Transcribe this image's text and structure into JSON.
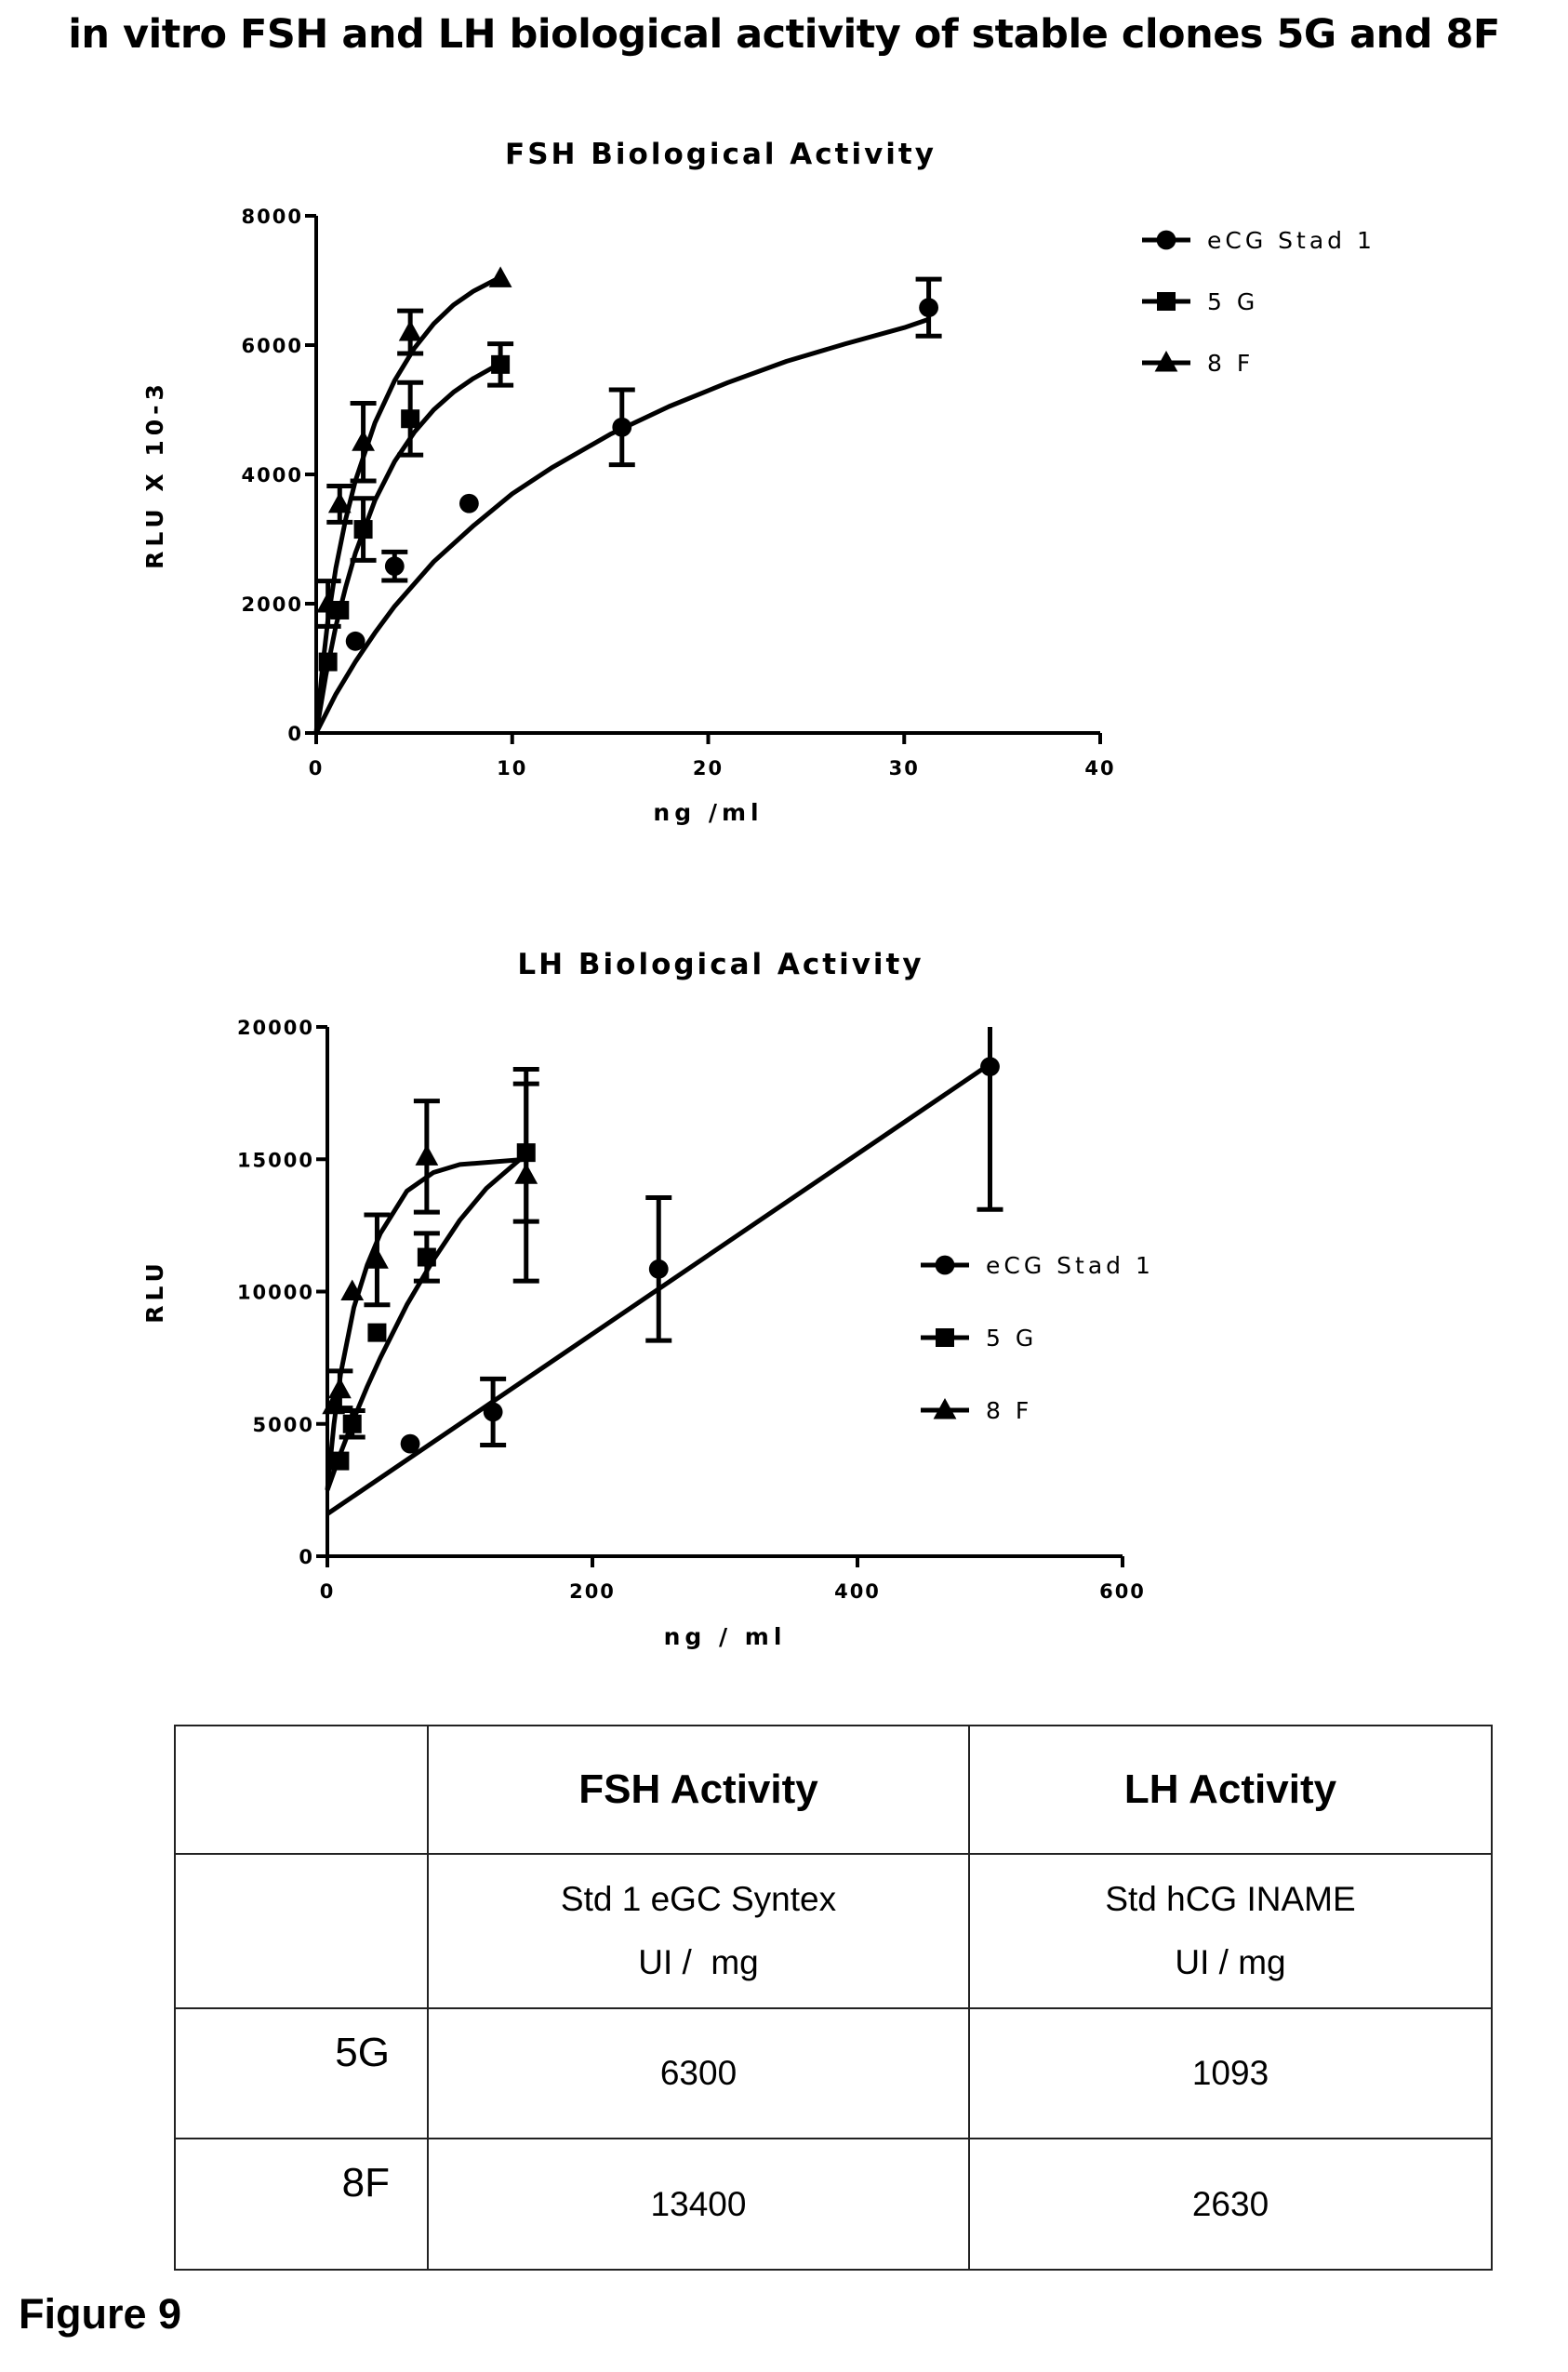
{
  "page_title": "in vitro FSH and LH biological  activity of stable clones 5G and 8F",
  "chart_data": [
    {
      "type": "scatter",
      "title": "FSH Biological Activity",
      "xlabel": "ng /ml",
      "ylabel": "RLU X 10-3",
      "xlim": [
        0,
        40
      ],
      "ylim": [
        0,
        8000
      ],
      "xticks": [
        0,
        10,
        20,
        30,
        40
      ],
      "yticks": [
        0,
        2000,
        4000,
        6000,
        8000
      ],
      "grid": false,
      "legend_position": "top-right",
      "series": [
        {
          "name": "eCG Stad 1",
          "marker": "circle",
          "points": [
            {
              "x": 2,
              "y": 1420
            },
            {
              "x": 4,
              "y": 2580,
              "err": 220
            },
            {
              "x": 7.8,
              "y": 3550
            },
            {
              "x": 15.6,
              "y": 4730,
              "err": 580
            },
            {
              "x": 31.25,
              "y": 6580,
              "err": 440
            }
          ],
          "curve": [
            [
              0,
              0
            ],
            [
              1,
              600
            ],
            [
              2,
              1100
            ],
            [
              3,
              1550
            ],
            [
              4,
              1960
            ],
            [
              6,
              2650
            ],
            [
              8,
              3200
            ],
            [
              10,
              3700
            ],
            [
              12,
              4100
            ],
            [
              15,
              4620
            ],
            [
              18,
              5050
            ],
            [
              21,
              5420
            ],
            [
              24,
              5750
            ],
            [
              27,
              6020
            ],
            [
              30,
              6270
            ],
            [
              31.25,
              6400
            ]
          ]
        },
        {
          "name": "5 G",
          "marker": "square",
          "points": [
            {
              "x": 0.6,
              "y": 1100
            },
            {
              "x": 1.2,
              "y": 1900
            },
            {
              "x": 2.4,
              "y": 3150,
              "err": 480
            },
            {
              "x": 4.8,
              "y": 4860,
              "err": 560
            },
            {
              "x": 9.4,
              "y": 5700,
              "err": 320
            }
          ],
          "curve": [
            [
              0,
              0
            ],
            [
              0.5,
              900
            ],
            [
              1,
              1650
            ],
            [
              1.5,
              2250
            ],
            [
              2,
              2780
            ],
            [
              3,
              3600
            ],
            [
              4,
              4200
            ],
            [
              5,
              4650
            ],
            [
              6,
              5000
            ],
            [
              7,
              5270
            ],
            [
              8,
              5480
            ],
            [
              9.4,
              5720
            ]
          ]
        },
        {
          "name": "8 F",
          "marker": "triangle",
          "points": [
            {
              "x": 0.6,
              "y": 2000,
              "err": 350
            },
            {
              "x": 1.2,
              "y": 3540,
              "err": 280
            },
            {
              "x": 2.4,
              "y": 4500,
              "err": 600
            },
            {
              "x": 4.8,
              "y": 6200,
              "err": 330
            },
            {
              "x": 9.4,
              "y": 7030
            }
          ],
          "curve": [
            [
              0,
              0
            ],
            [
              0.3,
              950
            ],
            [
              0.6,
              1750
            ],
            [
              1,
              2550
            ],
            [
              1.5,
              3300
            ],
            [
              2,
              3900
            ],
            [
              3,
              4800
            ],
            [
              4,
              5450
            ],
            [
              5,
              5950
            ],
            [
              6,
              6330
            ],
            [
              7,
              6620
            ],
            [
              8,
              6830
            ],
            [
              9.4,
              7050
            ]
          ]
        }
      ]
    },
    {
      "type": "scatter",
      "title": "LH Biological Activity",
      "xlabel": "ng / ml",
      "ylabel": "RLU",
      "xlim": [
        0,
        600
      ],
      "ylim": [
        0,
        20000
      ],
      "xticks": [
        0,
        200,
        400,
        600
      ],
      "yticks": [
        0,
        5000,
        10000,
        15000,
        20000
      ],
      "grid": false,
      "legend_position": "right",
      "series": [
        {
          "name": "eCG Stad 1",
          "marker": "circle",
          "points": [
            {
              "x": 62.5,
              "y": 4250
            },
            {
              "x": 125,
              "y": 5450,
              "err": 1250
            },
            {
              "x": 250,
              "y": 10850,
              "err": 2700
            },
            {
              "x": 500,
              "y": 18500,
              "err": 5400
            }
          ],
          "curve": [
            [
              0,
              1600
            ],
            [
              500,
              18600
            ]
          ]
        },
        {
          "name": "5 G",
          "marker": "square",
          "points": [
            {
              "x": 9.4,
              "y": 3600
            },
            {
              "x": 18.75,
              "y": 5000,
              "err": 500
            },
            {
              "x": 37.5,
              "y": 8450
            },
            {
              "x": 75,
              "y": 11300,
              "err": 900
            },
            {
              "x": 150,
              "y": 15250,
              "err": 2600
            }
          ],
          "curve": [
            [
              0,
              2500
            ],
            [
              10,
              3900
            ],
            [
              20,
              5200
            ],
            [
              30,
              6400
            ],
            [
              40,
              7500
            ],
            [
              60,
              9500
            ],
            [
              80,
              11200
            ],
            [
              100,
              12700
            ],
            [
              120,
              13900
            ],
            [
              150,
              15200
            ]
          ]
        },
        {
          "name": "8 F",
          "marker": "triangle",
          "points": [
            {
              "x": 4.7,
              "y": 5700
            },
            {
              "x": 9.4,
              "y": 6300,
              "err": 700
            },
            {
              "x": 18.75,
              "y": 10000
            },
            {
              "x": 37.5,
              "y": 11200,
              "err": 1700
            },
            {
              "x": 75,
              "y": 15100,
              "err": 2100
            },
            {
              "x": 150,
              "y": 14400,
              "err": 4000
            }
          ],
          "curve": [
            [
              0,
              2500
            ],
            [
              5,
              5000
            ],
            [
              10,
              6900
            ],
            [
              20,
              9400
            ],
            [
              30,
              11000
            ],
            [
              40,
              12200
            ],
            [
              60,
              13800
            ],
            [
              80,
              14500
            ],
            [
              100,
              14800
            ],
            [
              150,
              15000
            ]
          ]
        }
      ]
    }
  ],
  "table": {
    "headers": [
      "",
      "FSH Activity",
      "LH Activity"
    ],
    "subheader": {
      "fsh_line1": "Std 1 eGC Syntex",
      "fsh_line2": "UI /  mg",
      "lh_line1": "Std hCG INAME",
      "lh_line2": "UI / mg"
    },
    "rows": [
      {
        "label": "5G",
        "fsh": "6300",
        "lh": "1093"
      },
      {
        "label": "8F",
        "fsh": "13400",
        "lh": "2630"
      }
    ]
  },
  "figure_caption": "Figure 9"
}
